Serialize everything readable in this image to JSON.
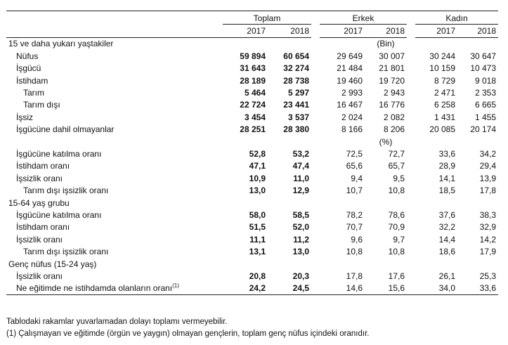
{
  "headers": {
    "groups": [
      "Toplam",
      "Erkek",
      "Kadın"
    ],
    "years": [
      "2017",
      "2018",
      "2017",
      "2018",
      "2017",
      "2018"
    ]
  },
  "rows": [
    {
      "kind": "section",
      "label": "15 ve daha yukarı yaştakiler",
      "unit": "(Bin)"
    },
    {
      "kind": "data",
      "label": "Nüfus",
      "indent": 1,
      "values": [
        "59 894",
        "60 654",
        "29 649",
        "30 007",
        "30 244",
        "30 647"
      ]
    },
    {
      "kind": "data",
      "label": "İşgücü",
      "indent": 1,
      "values": [
        "31 643",
        "32 274",
        "21 484",
        "21 801",
        "10 159",
        "10 473"
      ]
    },
    {
      "kind": "data",
      "label": "İstihdam",
      "indent": 1,
      "values": [
        "28 189",
        "28 738",
        "19 460",
        "19 720",
        "8 729",
        "9 018"
      ]
    },
    {
      "kind": "data",
      "label": "Tarım",
      "indent": 2,
      "values": [
        "5 464",
        "5 297",
        "2 993",
        "2 943",
        "2 471",
        "2 353"
      ]
    },
    {
      "kind": "data",
      "label": "Tarım dışı",
      "indent": 2,
      "values": [
        "22 724",
        "23 441",
        "16 467",
        "16 776",
        "6 258",
        "6 665"
      ]
    },
    {
      "kind": "data",
      "label": "İşsiz",
      "indent": 1,
      "values": [
        "3 454",
        "3 537",
        "2 024",
        "2 082",
        "1 431",
        "1 455"
      ]
    },
    {
      "kind": "data",
      "label": "İşgücüne dahil olmayanlar",
      "indent": 1,
      "values": [
        "28 251",
        "28 380",
        "8 166",
        "8 206",
        "20 085",
        "20 174"
      ]
    },
    {
      "kind": "unit",
      "unit": "(%)"
    },
    {
      "kind": "data",
      "label": "İşgücüne katılma oranı",
      "indent": 1,
      "values": [
        "52,8",
        "53,2",
        "72,5",
        "72,7",
        "33,6",
        "34,2"
      ]
    },
    {
      "kind": "data",
      "label": "İstihdam oranı",
      "indent": 1,
      "values": [
        "47,1",
        "47,4",
        "65,6",
        "65,7",
        "28,9",
        "29,4"
      ]
    },
    {
      "kind": "data",
      "label": "İşsizlik oranı",
      "indent": 1,
      "values": [
        "10,9",
        "11,0",
        "9,4",
        "9,5",
        "14,1",
        "13,9"
      ]
    },
    {
      "kind": "data",
      "label": "Tarım dışı işsizlik oranı",
      "indent": 2,
      "values": [
        "13,0",
        "12,9",
        "10,7",
        "10,8",
        "18,5",
        "17,8"
      ]
    },
    {
      "kind": "section",
      "label": "15-64 yaş grubu"
    },
    {
      "kind": "data",
      "label": "İşgücüne katılma oranı",
      "indent": 1,
      "values": [
        "58,0",
        "58,5",
        "78,2",
        "78,6",
        "37,6",
        "38,3"
      ]
    },
    {
      "kind": "data",
      "label": "İstihdam oranı",
      "indent": 1,
      "values": [
        "51,5",
        "52,0",
        "70,7",
        "70,9",
        "32,2",
        "32,9"
      ]
    },
    {
      "kind": "data",
      "label": "İşsizlik oranı",
      "indent": 1,
      "values": [
        "11,1",
        "11,2",
        "9,6",
        "9,7",
        "14,4",
        "14,2"
      ]
    },
    {
      "kind": "data",
      "label": "Tarım dışı işsizlik oranı",
      "indent": 2,
      "values": [
        "13,1",
        "13,0",
        "10,8",
        "10,8",
        "18,6",
        "17,9"
      ]
    },
    {
      "kind": "section",
      "label": "Genç nüfus (15-24 yaş)"
    },
    {
      "kind": "data",
      "label": "İşsizlik oranı",
      "indent": 1,
      "values": [
        "20,8",
        "20,3",
        "17,8",
        "17,6",
        "26,1",
        "25,3"
      ]
    },
    {
      "kind": "data",
      "label": "Ne eğitimde ne istihdamda olanların oranı",
      "sup": "(1)",
      "indent": 1,
      "values": [
        "24,2",
        "24,5",
        "14,6",
        "15,6",
        "34,0",
        "33,6"
      ]
    }
  ],
  "notes": [
    "Tablodaki rakamlar yuvarlamadan dolayı toplamı vermeyebilir.",
    "(1) Çalışmayan ve eğitimde (örgün ve yaygın) olmayan gençlerin, toplam genç nüfus içindeki oranıdır."
  ]
}
